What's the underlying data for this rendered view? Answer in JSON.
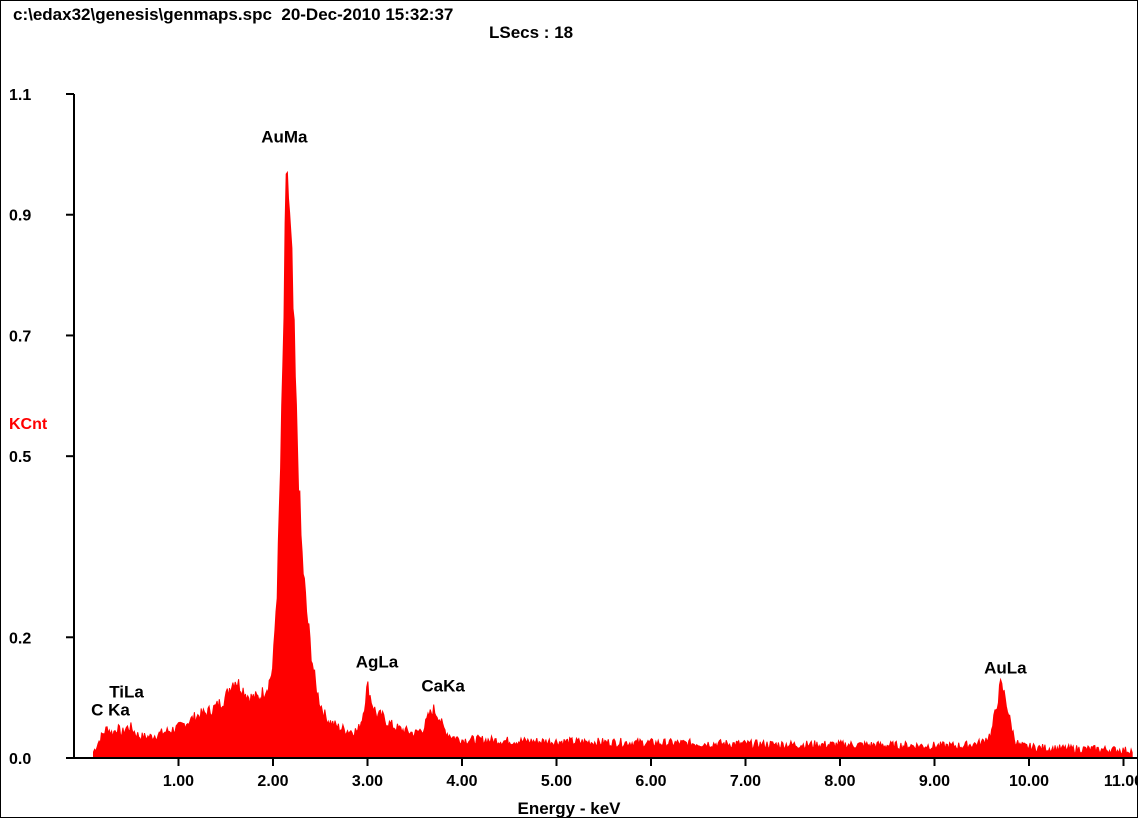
{
  "header": {
    "file_path": "c:\\edax32\\genesis\\genmaps.spc",
    "datetime": "20-Dec-2010 15:32:37",
    "lsecs_label": "LSecs :",
    "lsecs_value": "18"
  },
  "colors": {
    "spectrum": "#ff0000",
    "ylabel": "#ff0000",
    "axis": "#000000",
    "background": "#ffffff"
  },
  "chart_data": {
    "type": "area",
    "title": "",
    "xlabel": "Energy - keV",
    "ylabel": "KCnt",
    "xlim": [
      0.0,
      11.1
    ],
    "ylim": [
      0.0,
      1.1
    ],
    "x_ticks": [
      1.0,
      2.0,
      3.0,
      4.0,
      5.0,
      6.0,
      7.0,
      8.0,
      9.0,
      10.0,
      11.0
    ],
    "x_tick_labels": [
      "1.00",
      "2.00",
      "3.00",
      "4.00",
      "5.00",
      "6.00",
      "7.00",
      "8.00",
      "9.00",
      "10.00",
      "11.00"
    ],
    "y_ticks": [
      0.0,
      0.2,
      0.5,
      0.7,
      0.9,
      1.1
    ],
    "y_tick_labels": [
      "0.0",
      "0.2",
      "0.5",
      "0.7",
      "0.9",
      "1.1"
    ],
    "grid": false,
    "series": [
      {
        "x": [
          0.1,
          0.2,
          0.25,
          0.3,
          0.35,
          0.4,
          0.45,
          0.5,
          0.55,
          0.6,
          0.7,
          0.8,
          0.9,
          1.0,
          1.1,
          1.2,
          1.3,
          1.4,
          1.5,
          1.55,
          1.6,
          1.65,
          1.7,
          1.75,
          1.8,
          1.85,
          1.9,
          1.95,
          2.0,
          2.05,
          2.1,
          2.13,
          2.15,
          2.17,
          2.2,
          2.25,
          2.3,
          2.35,
          2.4,
          2.45,
          2.5,
          2.55,
          2.6,
          2.65,
          2.7,
          2.8,
          2.9,
          2.95,
          3.0,
          3.05,
          3.1,
          3.15,
          3.2,
          3.3,
          3.4,
          3.5,
          3.6,
          3.65,
          3.7,
          3.75,
          3.8,
          3.85,
          3.9,
          4.0,
          4.2,
          4.5,
          5.0,
          5.5,
          6.0,
          6.5,
          7.0,
          7.5,
          8.0,
          8.5,
          9.0,
          9.3,
          9.5,
          9.6,
          9.65,
          9.7,
          9.75,
          9.8,
          9.85,
          9.9,
          10.0,
          10.2,
          10.5,
          10.8,
          11.1
        ],
        "y": [
          0.01,
          0.04,
          0.05,
          0.04,
          0.05,
          0.04,
          0.05,
          0.05,
          0.04,
          0.035,
          0.035,
          0.04,
          0.045,
          0.05,
          0.06,
          0.07,
          0.075,
          0.085,
          0.1,
          0.12,
          0.13,
          0.12,
          0.11,
          0.1,
          0.1,
          0.1,
          0.11,
          0.12,
          0.15,
          0.3,
          0.6,
          0.85,
          0.99,
          0.9,
          0.8,
          0.55,
          0.35,
          0.25,
          0.18,
          0.12,
          0.09,
          0.07,
          0.06,
          0.055,
          0.05,
          0.045,
          0.045,
          0.07,
          0.12,
          0.09,
          0.07,
          0.07,
          0.06,
          0.05,
          0.045,
          0.04,
          0.05,
          0.07,
          0.08,
          0.07,
          0.05,
          0.04,
          0.035,
          0.03,
          0.03,
          0.028,
          0.027,
          0.026,
          0.025,
          0.024,
          0.023,
          0.022,
          0.022,
          0.021,
          0.02,
          0.02,
          0.025,
          0.04,
          0.08,
          0.12,
          0.1,
          0.06,
          0.03,
          0.02,
          0.018,
          0.016,
          0.015,
          0.014,
          0.012
        ]
      }
    ],
    "annotations": [
      {
        "text": "C Ka",
        "x": 0.28,
        "y": 0.07
      },
      {
        "text": "TiLa",
        "x": 0.45,
        "y": 0.1
      },
      {
        "text": "AuMa",
        "x": 2.12,
        "y": 1.02
      },
      {
        "text": "AgLa",
        "x": 3.1,
        "y": 0.15
      },
      {
        "text": "CaKa",
        "x": 3.8,
        "y": 0.11
      },
      {
        "text": "AuLa",
        "x": 9.75,
        "y": 0.14
      }
    ]
  }
}
